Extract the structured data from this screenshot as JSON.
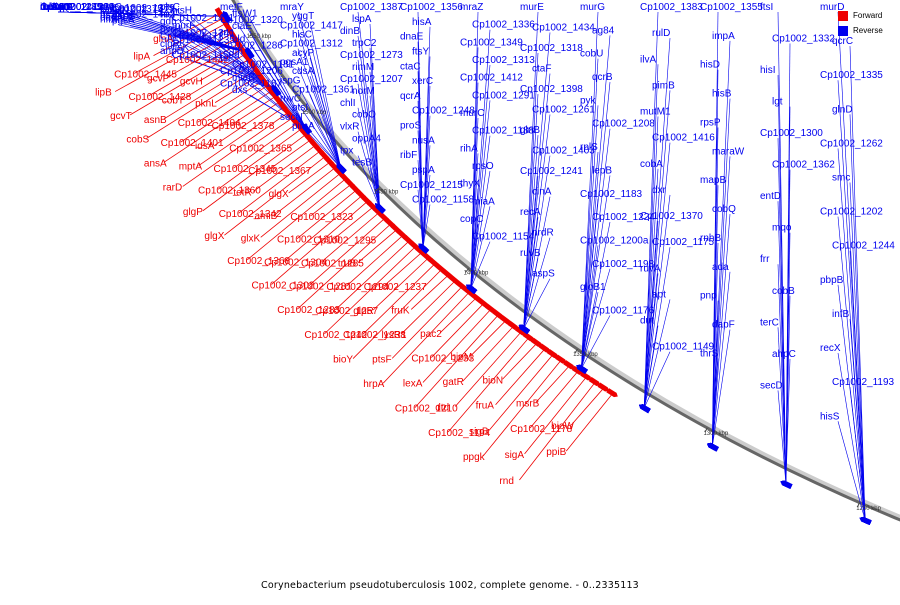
{
  "caption": "Corynebacterium pseudotuberculosis 1002, complete genome. - 0..2335113",
  "legend": [
    {
      "label": "Forward",
      "color": "#ee0000"
    },
    {
      "label": "Reverse",
      "color": "#0000ee"
    }
  ],
  "colors": {
    "forward": "#ee0000",
    "reverse": "#0000ee",
    "backbone": "#777777"
  },
  "scale_ticks": [
    "1550 kbp",
    "1500 kbp",
    "1450 kbp",
    "1400 kbp",
    "1350 kbp",
    "1300 kbp",
    "1250 kbp"
  ],
  "forward_labels": [
    "glnA",
    "lipA",
    "Cp1002_1445",
    "lipB",
    "Cp1002_1442",
    "gcvP",
    "Cp1002_1428",
    "gcvT",
    "gcvH",
    "cobT",
    "asnB",
    "cobS",
    "pknL",
    "Cp1002_1404",
    "Cp1002_1401",
    "ansA",
    "Cp1002_1378",
    "idsA",
    "mptA",
    "rarD",
    "Cp1002_1365",
    "Cp1002_1345",
    "Cp1002_1360",
    "glgP",
    "Cp1002_1367",
    "tetR",
    "Cp1002_1342",
    "glgX",
    "glgX",
    "amiB",
    "glxK",
    "Cp1002_1368",
    "Cp1002_1323",
    "Cp1002_1310",
    "Cp1002_1304",
    "Cp1002_1302",
    "Cp1002_1295",
    "Cp1002_1285",
    "Cp1002_1281",
    "Cp1002_1283",
    "truB",
    "Cp1002_1294",
    "Cp1002_1257",
    "Cp1002_1242",
    "Cp1002_1237",
    "glpR",
    "Cp1002_1238",
    "bioY",
    "fruK",
    "lysR1",
    "ptsF",
    "hrpA",
    "pac2",
    "Cp1002_1233",
    "lexA",
    "Cp1002_1210",
    "bioM",
    "gatR",
    "dtd",
    "Cp1002_1194",
    "bioN",
    "fruA",
    "sigB",
    "ppgk",
    "msrB",
    "Cp1002_1178",
    "sigA",
    "rnd",
    "bioW",
    "ppiB"
  ],
  "reverse_labels": [
    "Cp1002_1449",
    "aroG",
    "plsC",
    "metF",
    "mraY",
    "Cp1002_1387",
    "Cp1002_1356",
    "mraZ",
    "murE",
    "murG",
    "Cp1002_1383",
    "Cp1002_1355",
    "ftsI",
    "murD",
    "sepF",
    "Cp1002_1379",
    "hisH",
    "ftsW1",
    "yggT",
    "lspA",
    "hisA",
    "Cp1002_1336",
    "Cp1002_1434",
    "ag84",
    "rulD",
    "impA",
    "Cp1002_1332",
    "qcrC",
    "ileS",
    "Cp1002_1375",
    "hisF",
    "Cp1002_1320",
    "Cp1002_1417",
    "dinB",
    "dnaE",
    "Cp1002_1349",
    "Cp1002_1318",
    "cobU",
    "ilvA",
    "hisD",
    "hisI",
    "Cp1002_1335",
    "Cp1002_1314",
    "Cp1002_1427",
    "Cp1002_1411",
    "ctaE",
    "hisC",
    "trpC2",
    "ftsY",
    "Cp1002_1313",
    "ctaF",
    "qcrB",
    "pimB",
    "hisB",
    "lgt",
    "glnD",
    "Cp1002_1275",
    "ilvE",
    "gdh",
    "rnc",
    "Cp1002_1312",
    "Cp1002_1273",
    "ctaC",
    "Cp1002_1412",
    "Cp1002_1398",
    "pyk",
    "mutM1",
    "rpsP",
    "Cp1002_1300",
    "Cp1002_1262",
    "Cp1002_1221",
    "glk",
    "murF",
    "ald",
    "acyP",
    "rimM",
    "xerC",
    "Cp1002_1291",
    "Cp1002_1261",
    "Cp1002_1208",
    "Cp1002_1416",
    "maraW",
    "Cp1002_1362",
    "smc",
    "manP",
    "rpsB",
    "pvrH",
    "Cp1002_1286",
    "pgsA1",
    "Cp1002_1207",
    "qcrA",
    "murC",
    "glnB",
    "rplS",
    "cobA",
    "mapB",
    "entD",
    "Cp1002_1202",
    "ftsQ",
    "Cp1002_1402",
    "Cp1002_1341",
    "ffh",
    "cdsA",
    "norM",
    "Cp1002_1248",
    "Cp1002_1188",
    "Cp1002_1403",
    "lepB",
    "dxr",
    "cobQ",
    "mqo",
    "Cp1002_1244",
    "Cp1002_1185",
    "ftsZ",
    "Cp1002_1371",
    "tsf",
    "ispG",
    "chlI",
    "proS",
    "rihA",
    "Cp1002_1241",
    "Cp1002_1183",
    "Cp1002_1370",
    "rnhB",
    "frr",
    "pbpB",
    "rimP",
    "dapB",
    "Cp1002_1235",
    "Cp1002_1181",
    "Cp1002_1361",
    "cobO",
    "nusA",
    "rpsO",
    "cinA",
    "Cp1002_1224",
    "Cp1002_1175",
    "ada",
    "cobB",
    "infB",
    "rbfA",
    "dapA",
    "clgR",
    "Cp1002_1206",
    "ruvC",
    "vlxR",
    "ribF",
    "thyX",
    "recA",
    "Cp1002_1200a",
    "ruvA",
    "pnp",
    "terC",
    "recX",
    "Cp1002_1199",
    "secF",
    "ftsK",
    "miaB",
    "ptsI",
    "oppA4",
    "pspA",
    "miaA",
    "nrdR",
    "Cp1002_1198",
    "apt",
    "dapF",
    "ahpC",
    "Cp1002_1193",
    "relA",
    "hflX",
    "ahpD",
    "Cp1002_1187",
    "secN",
    "tpx",
    "Cp1002_1215",
    "copC",
    "ruvB",
    "gloB1",
    "dut",
    "thrS",
    "secD",
    "hisS",
    "trmA",
    "pgsA",
    "Cp1002_1159a",
    "dxs",
    "pimA",
    "tesB",
    "Cp1002_1158",
    "Cp1002_1154",
    "aspS",
    "Cp1002_1176",
    "Cp1002_1149"
  ]
}
